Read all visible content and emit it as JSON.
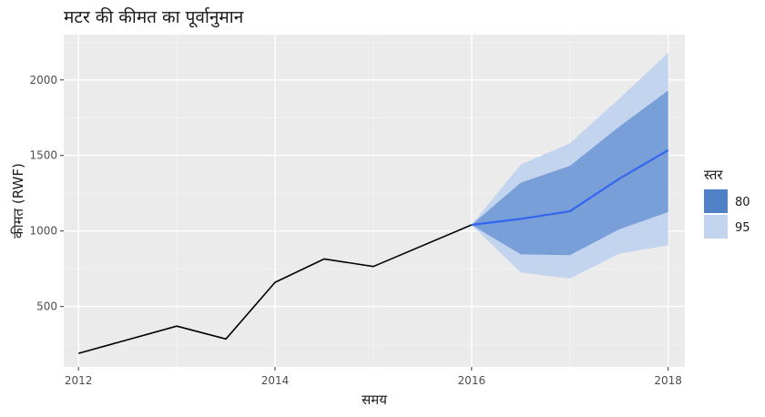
{
  "chart_data": {
    "type": "line",
    "title": "मटर की कीमत का पूर्वानुमान",
    "xlabel": "समय",
    "ylabel": "कीमत (RWF)",
    "xlim": [
      2011.85,
      2018.17
    ],
    "ylim": [
      100,
      2300
    ],
    "x_ticks": [
      2012,
      2014,
      2016,
      2018
    ],
    "x_tick_labels": [
      "2012",
      "2014",
      "2016",
      "2018"
    ],
    "y_ticks": [
      500,
      1000,
      1500,
      2000
    ],
    "y_tick_labels": [
      "500",
      "1000",
      "1500",
      "2000"
    ],
    "grid": true,
    "legend_position": "right",
    "series": [
      {
        "role": "observed",
        "color": "#000000",
        "x": [
          2012,
          2013,
          2013.5,
          2014,
          2014.5,
          2015,
          2016
        ],
        "y": [
          190,
          370,
          285,
          660,
          815,
          765,
          1040
        ]
      },
      {
        "role": "forecast",
        "color": "#3366ee",
        "x": [
          2016,
          2016.5,
          2017,
          2017.5,
          2018
        ],
        "y": [
          1040,
          1080,
          1130,
          1345,
          1535
        ]
      }
    ],
    "intervals": [
      {
        "name": "95",
        "color": "#c3d4ee",
        "x": [
          2016,
          2016.5,
          2017,
          2017.5,
          2018
        ],
        "lower": [
          1040,
          725,
          685,
          850,
          905
        ],
        "upper": [
          1040,
          1440,
          1580,
          1875,
          2180
        ]
      },
      {
        "name": "80",
        "color": "#5b8ad0",
        "x": [
          2016,
          2016.5,
          2017,
          2017.5,
          2018
        ],
        "lower": [
          1040,
          845,
          840,
          1010,
          1125
        ],
        "upper": [
          1040,
          1320,
          1430,
          1690,
          1930
        ]
      }
    ],
    "legend": {
      "title": "स्तर",
      "items": [
        {
          "label": "80",
          "color": "#4f81c6"
        },
        {
          "label": "95",
          "color": "#c3d4ee"
        }
      ]
    }
  }
}
